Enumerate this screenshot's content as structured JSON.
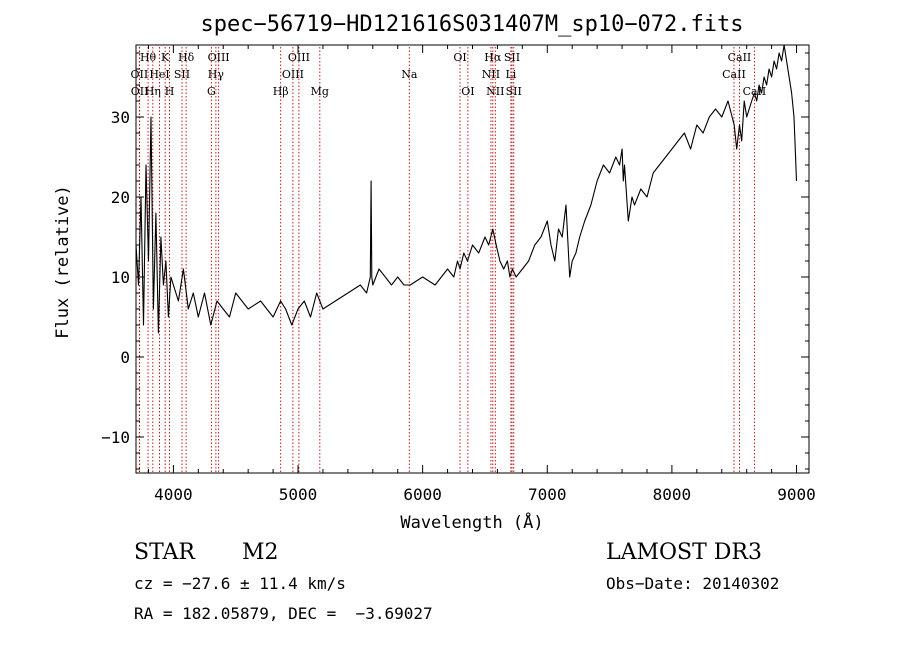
{
  "chart_data": {
    "type": "line",
    "title": "spec−56719−HD121616S031407M_sp10−072.fits",
    "xlabel": "Wavelength (Å)",
    "ylabel": "Flux (relative)",
    "xlim": [
      3700,
      9100
    ],
    "ylim": [
      -14.5,
      39
    ],
    "x_ticks": [
      4000,
      5000,
      6000,
      7000,
      8000,
      9000
    ],
    "y_ticks": [
      -10,
      0,
      10,
      20,
      30
    ],
    "grid": false,
    "series": [
      {
        "name": "flux",
        "x": [
          3700,
          3720,
          3740,
          3760,
          3780,
          3800,
          3820,
          3840,
          3860,
          3880,
          3900,
          3920,
          3940,
          3960,
          3980,
          4000,
          4040,
          4080,
          4120,
          4160,
          4200,
          4250,
          4300,
          4350,
          4400,
          4450,
          4500,
          4600,
          4700,
          4800,
          4860,
          4900,
          4950,
          5000,
          5050,
          5100,
          5150,
          5200,
          5300,
          5400,
          5500,
          5550,
          5580,
          5586,
          5592,
          5600,
          5650,
          5700,
          5750,
          5800,
          5850,
          5900,
          6000,
          6100,
          6200,
          6250,
          6280,
          6300,
          6330,
          6360,
          6400,
          6450,
          6500,
          6530,
          6563,
          6590,
          6620,
          6650,
          6680,
          6700,
          6720,
          6750,
          6800,
          6850,
          6900,
          6950,
          7000,
          7030,
          7060,
          7090,
          7120,
          7150,
          7180,
          7200,
          7230,
          7260,
          7300,
          7350,
          7400,
          7450,
          7500,
          7550,
          7580,
          7600,
          7610,
          7620,
          7650,
          7680,
          7700,
          7750,
          7800,
          7850,
          7900,
          7950,
          8000,
          8050,
          8100,
          8150,
          8200,
          8250,
          8300,
          8350,
          8400,
          8450,
          8500,
          8520,
          8542,
          8560,
          8580,
          8600,
          8620,
          8640,
          8662,
          8680,
          8700,
          8720,
          8740,
          8760,
          8780,
          8800,
          8820,
          8840,
          8860,
          8880,
          8900,
          8920,
          8940,
          8960,
          8980,
          9000
        ],
        "y": [
          14,
          9,
          20,
          4,
          24,
          12,
          30,
          6,
          18,
          3,
          15,
          9,
          12,
          5,
          10,
          9,
          7,
          11,
          6,
          8,
          5,
          8,
          4,
          7,
          6,
          5,
          8,
          6,
          7,
          5,
          7,
          6,
          4,
          6,
          7,
          5,
          8,
          6,
          7,
          8,
          9,
          8,
          10,
          22,
          10,
          9,
          11,
          10,
          9,
          10,
          9,
          9,
          10,
          9,
          11,
          10,
          12,
          11,
          13,
          12,
          14,
          13,
          15,
          14,
          16,
          14,
          12,
          11,
          12,
          10,
          11,
          10,
          11,
          12,
          14,
          15,
          17,
          14,
          12,
          16,
          15,
          19,
          10,
          12,
          13,
          15,
          17,
          19,
          22,
          24,
          23,
          25,
          24,
          26,
          22,
          24,
          17,
          20,
          19,
          21,
          20,
          23,
          24,
          25,
          26,
          27,
          28,
          26,
          29,
          28,
          30,
          31,
          30,
          32,
          29,
          26,
          29,
          27,
          32,
          30,
          31,
          32,
          33,
          32,
          34,
          33,
          35,
          34,
          36,
          35,
          37,
          36,
          38,
          37,
          39,
          37,
          35,
          33,
          30,
          22
        ]
      }
    ],
    "line_markers": [
      {
        "label": "Hθ",
        "x": 3797,
        "row": 0
      },
      {
        "label": "OII",
        "x": 3727,
        "row": 1
      },
      {
        "label": "OII",
        "x": 3729,
        "row": 2
      },
      {
        "label": "K",
        "x": 3934,
        "row": 0
      },
      {
        "label": "HeI",
        "x": 3889,
        "row": 1
      },
      {
        "label": "Hη",
        "x": 3835,
        "row": 2
      },
      {
        "label": "Hδ",
        "x": 4102,
        "row": 0
      },
      {
        "label": "SII",
        "x": 4069,
        "row": 1
      },
      {
        "label": "H",
        "x": 3969,
        "row": 2
      },
      {
        "label": "OIII",
        "x": 4363,
        "row": 0
      },
      {
        "label": "Hγ",
        "x": 4341,
        "row": 1
      },
      {
        "label": "G",
        "x": 4305,
        "row": 2
      },
      {
        "label": "OIII",
        "x": 5007,
        "row": 0
      },
      {
        "label": "OIII",
        "x": 4959,
        "row": 1
      },
      {
        "label": "Hβ",
        "x": 4861,
        "row": 2
      },
      {
        "label": "Mg",
        "x": 5175,
        "row": 2
      },
      {
        "label": "Na",
        "x": 5893,
        "row": 1
      },
      {
        "label": "OI",
        "x": 6300,
        "row": 0
      },
      {
        "label": "OI",
        "x": 6363,
        "row": 2
      },
      {
        "label": "Hα",
        "x": 6563,
        "row": 0
      },
      {
        "label": "NII",
        "x": 6548,
        "row": 1
      },
      {
        "label": "NII",
        "x": 6583,
        "row": 2
      },
      {
        "label": "SII",
        "x": 6717,
        "row": 0
      },
      {
        "label": "Li",
        "x": 6708,
        "row": 1
      },
      {
        "label": "SII",
        "x": 6731,
        "row": 2
      },
      {
        "label": "CaII",
        "x": 8542,
        "row": 0
      },
      {
        "label": "CaII",
        "x": 8498,
        "row": 1
      },
      {
        "label": "CaII",
        "x": 8662,
        "row": 2
      }
    ],
    "annotations": {
      "class": "STAR",
      "subclass": "M2",
      "survey": "LAMOST DR3",
      "cz": "cz = −27.6 ± 11.4 km/s",
      "obs_date": "Obs−Date: 20140302",
      "coords": "RA = 182.05879, DEC =  −3.69027"
    }
  }
}
